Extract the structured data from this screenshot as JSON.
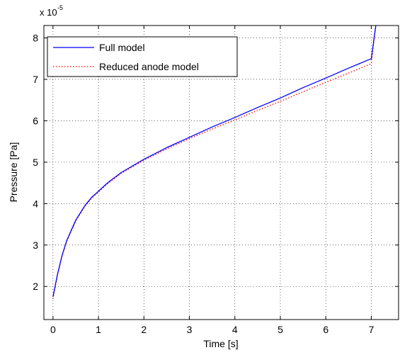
{
  "chart_data": {
    "type": "line",
    "xlabel": "Time [s]",
    "ylabel": "Pressure [Pa]",
    "exponent": {
      "base": "x 10",
      "power": "-5"
    },
    "xlim": [
      -0.2,
      7.6
    ],
    "ylim": [
      1.2,
      8.3
    ],
    "xticks": [
      0,
      1,
      2,
      3,
      4,
      5,
      6,
      7
    ],
    "yticks": [
      2,
      3,
      4,
      5,
      6,
      7,
      8
    ],
    "xtick_labels": [
      "0",
      "1",
      "2",
      "3",
      "4",
      "5",
      "6",
      "7"
    ],
    "ytick_labels": [
      "2",
      "3",
      "4",
      "5",
      "6",
      "7",
      "8"
    ],
    "grid": true,
    "legend_position": "top-left",
    "series": [
      {
        "name": "Full model",
        "color": "#0000ff",
        "style": "solid",
        "x": [
          0,
          0.1,
          0.2,
          0.3,
          0.5,
          0.7,
          0.85,
          1.0,
          1.2,
          1.5,
          2.0,
          2.5,
          3.0,
          3.5,
          4.0,
          4.5,
          5.0,
          5.5,
          6.0,
          6.5,
          7.0,
          7.05,
          7.1,
          7.2
        ],
        "y": [
          1.75,
          2.3,
          2.75,
          3.1,
          3.6,
          3.95,
          4.15,
          4.3,
          4.5,
          4.75,
          5.07,
          5.35,
          5.6,
          5.85,
          6.08,
          6.32,
          6.55,
          6.8,
          7.03,
          7.27,
          7.5,
          7.9,
          8.3,
          8.6
        ]
      },
      {
        "name": "Reduced anode model",
        "color": "#ff0000",
        "style": "dotted",
        "x": [
          0,
          0.1,
          0.2,
          0.3,
          0.5,
          0.7,
          0.85,
          1.0,
          1.2,
          1.5,
          2.0,
          2.5,
          3.0,
          3.5,
          4.0,
          4.5,
          5.0,
          5.5,
          6.0,
          6.5,
          7.0,
          7.05,
          7.1,
          7.2
        ],
        "y": [
          1.7,
          2.28,
          2.73,
          3.08,
          3.58,
          3.93,
          4.13,
          4.28,
          4.48,
          4.73,
          5.05,
          5.32,
          5.57,
          5.8,
          6.02,
          6.25,
          6.47,
          6.7,
          6.93,
          7.15,
          7.38,
          7.85,
          8.3,
          8.6
        ]
      }
    ]
  }
}
